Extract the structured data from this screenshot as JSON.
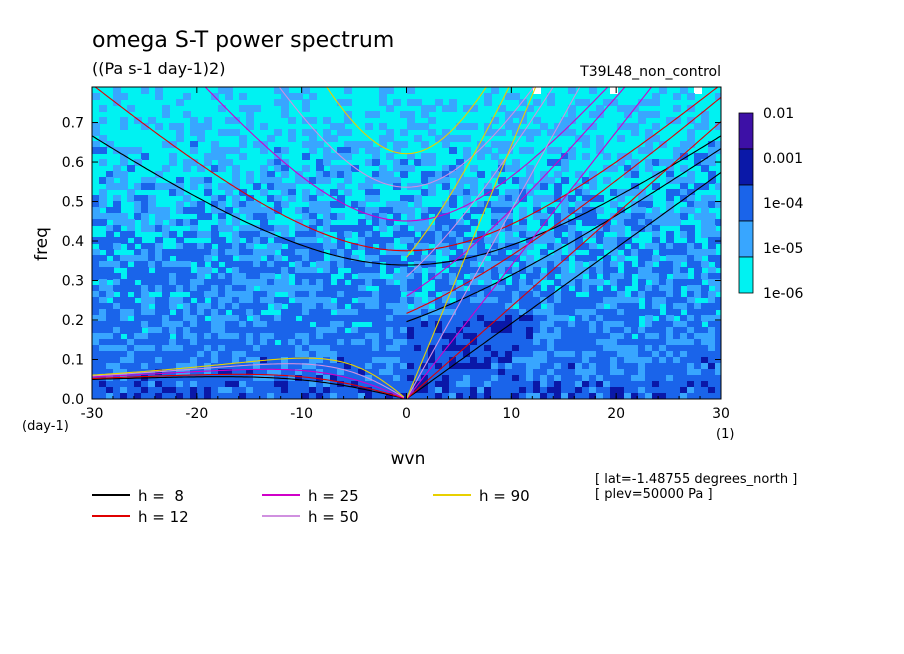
{
  "chart_data": {
    "type": "heatmap",
    "title": "omega S-T power spectrum",
    "subtitle": "((Pa s-1 day-1)2)",
    "run_label": "T39L48_non_control",
    "xlabel": "wvn",
    "ylabel": "freq",
    "x_unit": "(1)",
    "y_unit": "(day-1)",
    "xlim": [
      -30,
      30
    ],
    "ylim": [
      0,
      0.79
    ],
    "x_ticks": [
      -30,
      -20,
      -10,
      0,
      10,
      20,
      30
    ],
    "x_tick_labels": [
      "-30",
      "-20",
      "-10",
      "0",
      "10",
      "20",
      "30"
    ],
    "y_ticks": [
      0,
      0.1,
      0.2,
      0.3,
      0.4,
      0.5,
      0.6,
      0.7
    ],
    "y_tick_labels": [
      "0.0",
      "0.1",
      "0.2",
      "0.3",
      "0.4",
      "0.5",
      "0.6",
      "0.7"
    ],
    "colorbar": {
      "levels": [
        "0.01",
        "0.001",
        "1e-04",
        "1e-05",
        "1e-06"
      ],
      "colors": [
        "#3d10a6",
        "#0a18a8",
        "#1a64ea",
        "#38a6ff",
        "#00f2f2"
      ]
    },
    "field_colors": {
      "low": "#00f2f2",
      "mid": "#38a6ff",
      "high": "#1a64ea",
      "higher": "#0a18a8",
      "white": "#ffffff"
    },
    "dispersion_curves": [
      {
        "label": "h =  8",
        "h": 8,
        "color": "#000000"
      },
      {
        "label": "h = 12",
        "h": 12,
        "color": "#e00000"
      },
      {
        "label": "h = 25",
        "h": 25,
        "color": "#d000c8"
      },
      {
        "label": "h = 50",
        "h": 50,
        "color": "#d090e0"
      },
      {
        "label": "h = 90",
        "h": 90,
        "color": "#e8d000"
      }
    ],
    "annotations": [
      "[ lat=-1.48755 degrees_north ]",
      "[ plev=50000 Pa ]"
    ]
  }
}
